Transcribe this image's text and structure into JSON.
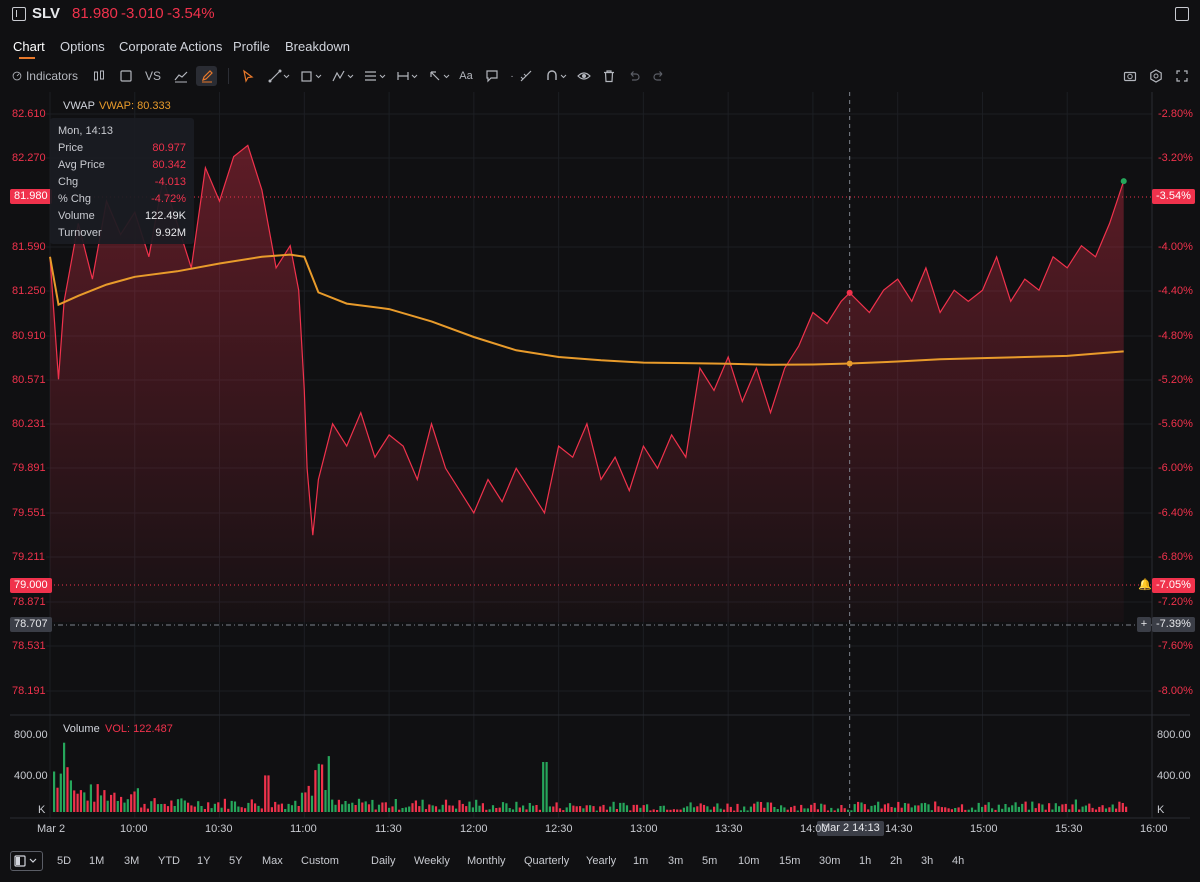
{
  "header": {
    "ticker": "SLV",
    "price": "81.980",
    "change": "-3.010",
    "change_pct": "-3.54%",
    "down_color": "#f0324c",
    "up_color": "#26a65b",
    "accent": "#e8792b"
  },
  "tabs": [
    "Chart",
    "Options",
    "Corporate Actions",
    "Profile",
    "Breakdown"
  ],
  "active_tab": "Chart",
  "toolbar": {
    "indicators_label": "Indicators",
    "vs_label": "VS",
    "text_tool_label": "Aa",
    "icons": [
      "indicators-icon",
      "candle-icon",
      "rectangle-icon",
      "vs",
      "area-chart-icon",
      "pencil-icon",
      "cursor-icon",
      "trendline-icon",
      "shape-icon",
      "pattern-icon",
      "fib-icon",
      "measure-icon",
      "arrow-icon",
      "text-tool",
      "comment-icon",
      "brush-icon",
      "magnet-icon",
      "eye-icon",
      "trash-icon",
      "undo-icon",
      "redo-icon",
      "camera-icon",
      "settings-icon",
      "fullscreen-icon"
    ]
  },
  "main_legend": {
    "indicator": "VWAP",
    "vwap_label": "VWAP: 80.333"
  },
  "tooltip": {
    "time": "Mon, 14:13",
    "rows": [
      {
        "key": "Price",
        "value": "80.977",
        "color": "#f0324c"
      },
      {
        "key": "Avg Price",
        "value": "80.342",
        "color": "#f0324c"
      },
      {
        "key": "Chg",
        "value": "-4.013",
        "color": "#f0324c"
      },
      {
        "key": "% Chg",
        "value": "-4.72%",
        "color": "#f0324c"
      },
      {
        "key": "Volume",
        "value": "122.49K",
        "color": "#d1d4dc"
      },
      {
        "key": "Turnover",
        "value": "9.92M",
        "color": "#d1d4dc"
      }
    ]
  },
  "y_axis_left": [
    "82.610",
    "82.270",
    "81.590",
    "81.250",
    "80.910",
    "80.571",
    "80.231",
    "79.891",
    "79.551",
    "79.211",
    "78.871",
    "78.531",
    "78.191"
  ],
  "y_axis_right": [
    "-2.80%",
    "-3.20%",
    "-4.00%",
    "-4.40%",
    "-4.80%",
    "-5.20%",
    "-5.60%",
    "-6.00%",
    "-6.40%",
    "-6.80%",
    "-7.20%",
    "-7.60%",
    "-8.00%"
  ],
  "price_tags": {
    "last_price": "81.980",
    "last_pct": "-3.54%",
    "alert_price": "79.000",
    "alert_pct": "-7.05%",
    "cursor_price": "78.707",
    "cursor_pct": "-7.39%",
    "cursor_time": "Mar 2 14:13"
  },
  "volume_legend": {
    "label": "Volume",
    "value_label": "VOL: 122.487"
  },
  "volume_axis": [
    "800.00",
    "400.00",
    "K"
  ],
  "x_axis": [
    "Mar 2",
    "10:00",
    "10:30",
    "11:00",
    "11:30",
    "12:00",
    "12:30",
    "13:00",
    "13:30",
    "14:00",
    "14:30",
    "15:00",
    "15:30",
    "16:00"
  ],
  "periods": [
    "5D",
    "1M",
    "3M",
    "YTD",
    "1Y",
    "5Y",
    "Max",
    "Custom"
  ],
  "intervals": [
    "Daily",
    "Weekly",
    "Monthly",
    "Quarterly",
    "Yearly",
    "1m",
    "3m",
    "5m",
    "10m",
    "15m",
    "30m",
    "1h",
    "2h",
    "3h",
    "4h"
  ],
  "chart_data": {
    "type": "line",
    "x_range": [
      "09:30",
      "16:00"
    ],
    "ylim": [
      78.02,
      82.78
    ],
    "series": [
      {
        "name": "Price",
        "color": "#f0324c",
        "x": [
          "09:30",
          "09:33",
          "09:35",
          "09:40",
          "09:45",
          "09:50",
          "09:55",
          "10:00",
          "10:05",
          "10:10",
          "10:15",
          "10:20",
          "10:25",
          "10:30",
          "10:35",
          "10:40",
          "10:45",
          "10:50",
          "10:55",
          "10:58",
          "11:00",
          "11:01",
          "11:03",
          "11:05",
          "11:10",
          "11:15",
          "11:20",
          "11:25",
          "11:30",
          "11:35",
          "11:40",
          "11:45",
          "11:50",
          "11:55",
          "12:00",
          "12:05",
          "12:10",
          "12:15",
          "12:20",
          "12:25",
          "12:30",
          "12:35",
          "12:40",
          "12:45",
          "12:50",
          "12:55",
          "13:00",
          "13:05",
          "13:10",
          "13:15",
          "13:20",
          "13:25",
          "13:30",
          "13:35",
          "13:40",
          "13:45",
          "13:50",
          "13:55",
          "14:00",
          "14:05",
          "14:10",
          "14:13",
          "14:20",
          "14:25",
          "14:30",
          "14:35",
          "14:40",
          "14:45",
          "14:50",
          "14:55",
          "15:00",
          "15:05",
          "15:10",
          "15:15",
          "15:20",
          "15:25",
          "15:30",
          "15:35",
          "15:40",
          "15:45",
          "15:50"
        ],
        "values": [
          81.3,
          80.2,
          80.9,
          81.6,
          81.1,
          81.8,
          81.5,
          81.7,
          81.3,
          82.0,
          81.6,
          81.2,
          82.1,
          81.8,
          82.2,
          82.3,
          81.9,
          81.2,
          81.4,
          81.0,
          80.1,
          79.4,
          78.8,
          79.3,
          79.8,
          79.6,
          79.9,
          79.5,
          79.7,
          79.6,
          79.3,
          79.8,
          79.4,
          79.2,
          79.0,
          79.3,
          79.1,
          79.4,
          79.2,
          79.0,
          79.6,
          79.5,
          79.8,
          79.3,
          79.5,
          79.2,
          79.6,
          79.4,
          79.7,
          79.5,
          80.3,
          80.1,
          80.4,
          80.0,
          80.3,
          79.9,
          80.3,
          80.5,
          80.8,
          80.7,
          80.9,
          80.977,
          80.8,
          81.0,
          81.1,
          80.9,
          81.2,
          80.8,
          81.0,
          80.9,
          81.0,
          81.3,
          80.9,
          81.1,
          81.0,
          81.3,
          81.2,
          81.4,
          81.3,
          81.6,
          81.98
        ]
      },
      {
        "name": "VWAP",
        "color": "#e89b2b",
        "x": [
          "09:30",
          "09:33",
          "09:40",
          "09:50",
          "10:00",
          "10:15",
          "10:30",
          "10:45",
          "10:55",
          "11:00",
          "11:05",
          "11:15",
          "11:30",
          "11:45",
          "12:00",
          "12:15",
          "12:30",
          "12:45",
          "13:00",
          "13:15",
          "13:30",
          "13:45",
          "14:00",
          "14:13",
          "14:30",
          "14:45",
          "15:00",
          "15:15",
          "15:30",
          "15:50"
        ],
        "values": [
          81.3,
          80.87,
          80.95,
          81.05,
          81.12,
          81.17,
          81.24,
          81.3,
          81.32,
          81.3,
          80.98,
          80.88,
          80.83,
          80.72,
          80.58,
          80.46,
          80.4,
          80.37,
          80.35,
          80.345,
          80.34,
          80.33,
          80.333,
          80.342,
          80.36,
          80.38,
          80.39,
          80.4,
          80.41,
          80.45
        ]
      }
    ],
    "volume": {
      "name": "Volume",
      "unit": "K",
      "ylim": [
        0,
        900
      ]
    }
  }
}
